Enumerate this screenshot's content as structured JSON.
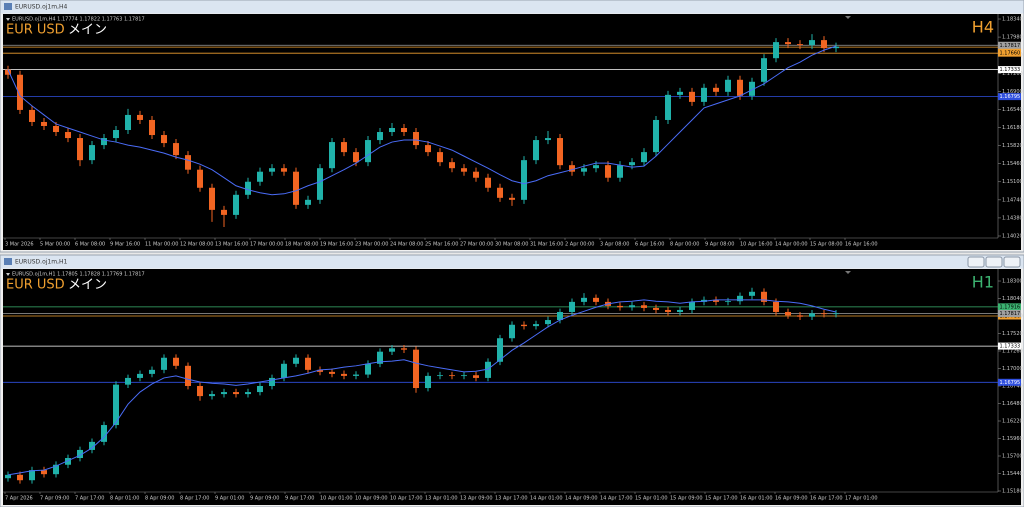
{
  "chart_data": [
    {
      "type": "candlestick",
      "window_title": "EURUSD.oj1m,H4",
      "header": "EURUSD.oj1m,H4  1.17774 1.17822 1.17763 1.17817",
      "symbol_label": "EUR USD",
      "name_label": "メイン",
      "timeframe": "H4",
      "timeframe_color": "#f0a030",
      "up_color": "#20b2aa",
      "down_color": "#f26522",
      "open": [
        1.1733,
        1.1723,
        1.1653,
        1.1629,
        1.1621,
        1.1609,
        1.1597,
        1.1553,
        1.1583,
        1.1597,
        1.1613,
        1.1643,
        1.1633,
        1.1603,
        1.1587,
        1.1563,
        1.1534,
        1.1498,
        1.1454,
        1.1444,
        1.1484,
        1.151,
        1.153,
        1.1537,
        1.153,
        1.1464,
        1.1474,
        1.1537,
        1.1589,
        1.1569,
        1.1549,
        1.1593,
        1.1609,
        1.1617,
        1.1609,
        1.1583,
        1.1569,
        1.1549,
        1.1537,
        1.153,
        1.1518,
        1.1498,
        1.1478,
        1.1474,
        1.1553,
        1.1593,
        1.1597,
        1.1543,
        1.153,
        1.1537,
        1.1543,
        1.1518,
        1.1543,
        1.1549,
        1.1569,
        1.1633,
        1.1683,
        1.1689,
        1.1669,
        1.1697,
        1.1689,
        1.1713,
        1.1681,
        1.1709,
        1.1756,
        1.1788,
        1.1784,
        1.1782,
        1.1792,
        1.1776
      ],
      "high": [
        1.1741,
        1.1731,
        1.1661,
        1.1637,
        1.1629,
        1.1617,
        1.1605,
        1.1591,
        1.1605,
        1.1621,
        1.1655,
        1.1651,
        1.1641,
        1.1611,
        1.1595,
        1.1571,
        1.1542,
        1.1506,
        1.1462,
        1.1492,
        1.1518,
        1.1538,
        1.1545,
        1.1545,
        1.1538,
        1.1482,
        1.1545,
        1.1597,
        1.1597,
        1.1577,
        1.1601,
        1.1617,
        1.1627,
        1.1625,
        1.1617,
        1.1591,
        1.1577,
        1.1557,
        1.1545,
        1.1538,
        1.1526,
        1.1506,
        1.1486,
        1.1561,
        1.1601,
        1.1611,
        1.1605,
        1.1551,
        1.1545,
        1.1551,
        1.1551,
        1.1551,
        1.1557,
        1.1577,
        1.1641,
        1.1691,
        1.1697,
        1.1697,
        1.1705,
        1.1705,
        1.1721,
        1.1721,
        1.1717,
        1.1764,
        1.1796,
        1.1796,
        1.1792,
        1.1804,
        1.18,
        1.1787
      ],
      "low": [
        1.1715,
        1.1645,
        1.1621,
        1.1613,
        1.1601,
        1.1589,
        1.1541,
        1.1545,
        1.1575,
        1.1589,
        1.1605,
        1.1625,
        1.1595,
        1.1579,
        1.1555,
        1.1526,
        1.149,
        1.143,
        1.142,
        1.1436,
        1.1476,
        1.1502,
        1.1522,
        1.1522,
        1.1456,
        1.1456,
        1.1466,
        1.1529,
        1.1561,
        1.1541,
        1.1541,
        1.1585,
        1.1601,
        1.1601,
        1.1575,
        1.1561,
        1.1541,
        1.1529,
        1.1522,
        1.151,
        1.149,
        1.147,
        1.1462,
        1.1466,
        1.1545,
        1.1585,
        1.1535,
        1.1522,
        1.1522,
        1.1529,
        1.151,
        1.151,
        1.1535,
        1.1541,
        1.1561,
        1.1625,
        1.1675,
        1.1661,
        1.1661,
        1.1681,
        1.1681,
        1.1673,
        1.1673,
        1.1701,
        1.1748,
        1.1776,
        1.1774,
        1.1774,
        1.1768,
        1.1768
      ],
      "close": [
        1.1723,
        1.1653,
        1.1629,
        1.1621,
        1.1609,
        1.1597,
        1.1553,
        1.1583,
        1.1597,
        1.1613,
        1.1643,
        1.1633,
        1.1603,
        1.1587,
        1.1563,
        1.1534,
        1.1498,
        1.1454,
        1.1444,
        1.1484,
        1.151,
        1.153,
        1.1537,
        1.153,
        1.1464,
        1.1474,
        1.1537,
        1.1589,
        1.1569,
        1.1549,
        1.1593,
        1.1609,
        1.1617,
        1.1609,
        1.1583,
        1.1569,
        1.1549,
        1.1537,
        1.153,
        1.1518,
        1.1498,
        1.1478,
        1.1474,
        1.1553,
        1.1593,
        1.1597,
        1.1543,
        1.153,
        1.1537,
        1.1543,
        1.1518,
        1.1543,
        1.1549,
        1.1569,
        1.1633,
        1.1683,
        1.1689,
        1.1669,
        1.1697,
        1.1689,
        1.1713,
        1.1681,
        1.1709,
        1.1756,
        1.1788,
        1.1784,
        1.1782,
        1.1792,
        1.1776,
        1.1779
      ],
      "ma": {
        "color": "#4a6cf7",
        "values": [
          1.1733,
          1.1681,
          1.1661,
          1.1643,
          1.1625,
          1.1617,
          1.1609,
          1.1601,
          1.1593,
          1.1589,
          1.1583,
          1.1579,
          1.1573,
          1.1567,
          1.1559,
          1.1553,
          1.1545,
          1.1534,
          1.1518,
          1.1502,
          1.1494,
          1.1488,
          1.1484,
          1.1486,
          1.1492,
          1.1502,
          1.151,
          1.1522,
          1.1534,
          1.1547,
          1.1563,
          1.1579,
          1.1589,
          1.1593,
          1.1593,
          1.1589,
          1.1581,
          1.1573,
          1.1561,
          1.1549,
          1.1537,
          1.1524,
          1.1512,
          1.1506,
          1.1512,
          1.1522,
          1.1528,
          1.1534,
          1.1541,
          1.1547,
          1.1547,
          1.1543,
          1.1539,
          1.1541,
          1.1561,
          1.1585,
          1.1609,
          1.1633,
          1.1657,
          1.1665,
          1.1673,
          1.1681,
          1.1693,
          1.1705,
          1.1721,
          1.1737,
          1.1748,
          1.1762,
          1.1772,
          1.178
        ]
      },
      "levels": [
        {
          "value": 1.1778,
          "label": "1.17780",
          "color": "#f0a030"
        },
        {
          "value": 1.1766,
          "label": "1.17660",
          "color": "#f0a030"
        },
        {
          "value": 1.17817,
          "color": "#a0a0a0"
        },
        {
          "value": 1.17333,
          "color": "#ffffff"
        },
        {
          "value": 1.16795,
          "color": "#3050e0"
        }
      ],
      "ylim": [
        1.1398,
        1.1838
      ],
      "yticks": [
        {
          "value": 1.1834,
          "label": "1.18340"
        },
        {
          "value": 1.1798,
          "label": "1.17980"
        },
        {
          "value": 1.1762,
          "label": "1.17620"
        },
        {
          "value": 1.1726,
          "label": "1.17260"
        },
        {
          "value": 1.169,
          "label": "1.16900"
        },
        {
          "value": 1.1654,
          "label": "1.16540"
        },
        {
          "value": 1.1618,
          "label": "1.16180"
        },
        {
          "value": 1.1582,
          "label": "1.15820"
        },
        {
          "value": 1.1546,
          "label": "1.15460"
        },
        {
          "value": 1.151,
          "label": "1.15100"
        },
        {
          "value": 1.1474,
          "label": "1.14740"
        },
        {
          "value": 1.1438,
          "label": "1.14380"
        },
        {
          "value": 1.1402,
          "label": "1.14020"
        }
      ],
      "time_labels": [
        "3 Mar 2026",
        "5 Mar 00:00",
        "6 Mar 08:00",
        "9 Mar 16:00",
        "11 Mar 00:00",
        "12 Mar 08:00",
        "13 Mar 16:00",
        "17 Mar 00:00",
        "18 Mar 08:00",
        "19 Mar 16:00",
        "23 Mar 00:00",
        "24 Mar 08:00",
        "25 Mar 16:00",
        "27 Mar 00:00",
        "30 Mar 08:00",
        "31 Mar 16:00",
        "2 Apr 00:00",
        "3 Apr 08:00",
        "6 Apr 16:00",
        "8 Apr 00:00",
        "9 Apr 08:00",
        "10 Apr 16:00",
        "14 Apr 00:00",
        "15 Apr 08:00",
        "16 Apr 16:00"
      ]
    },
    {
      "type": "candlestick",
      "window_title": "EURUSD.oj1m,H1",
      "header": "EURUSD.oj1m,H1  1.17805 1.17828 1.17769 1.17817",
      "symbol_label": "EUR USD",
      "name_label": "メイン",
      "timeframe": "H1",
      "timeframe_color": "#3cb371",
      "up_color": "#20b2aa",
      "down_color": "#f26522",
      "open": [
        1.1537,
        1.1542,
        1.1534,
        1.1549,
        1.1543,
        1.1557,
        1.1567,
        1.1579,
        1.1591,
        1.1616,
        1.1676,
        1.1686,
        1.1692,
        1.1698,
        1.1716,
        1.1704,
        1.1674,
        1.1659,
        1.1662,
        1.1665,
        1.1662,
        1.1665,
        1.1674,
        1.1686,
        1.1707,
        1.1716,
        1.1698,
        1.1695,
        1.1692,
        1.1689,
        1.1691,
        1.1707,
        1.1725,
        1.173,
        1.1728,
        1.1671,
        1.1689,
        1.169,
        1.1689,
        1.169,
        1.1686,
        1.171,
        1.1745,
        1.1765,
        1.1763,
        1.1766,
        1.1772,
        1.1784,
        1.1799,
        1.1805,
        1.1799,
        1.1793,
        1.1791,
        1.1794,
        1.179,
        1.1787,
        1.1784,
        1.1787,
        1.1799,
        1.1802,
        1.1799,
        1.18,
        1.1808,
        1.1814,
        1.1799,
        1.1784,
        1.1779,
        1.1777,
        1.1782,
        1.1781
      ],
      "high": [
        1.1547,
        1.1547,
        1.1554,
        1.1554,
        1.1562,
        1.1572,
        1.1584,
        1.1596,
        1.1621,
        1.1681,
        1.1691,
        1.1697,
        1.1703,
        1.1721,
        1.1721,
        1.1709,
        1.1679,
        1.1667,
        1.167,
        1.167,
        1.167,
        1.1679,
        1.1691,
        1.1712,
        1.1721,
        1.1721,
        1.1703,
        1.17,
        1.1697,
        1.1696,
        1.1712,
        1.173,
        1.1735,
        1.1735,
        1.1733,
        1.1694,
        1.1695,
        1.1695,
        1.1695,
        1.1695,
        1.1715,
        1.175,
        1.177,
        1.177,
        1.1771,
        1.1777,
        1.1789,
        1.1804,
        1.1812,
        1.181,
        1.1804,
        1.1798,
        1.1799,
        1.1799,
        1.1795,
        1.1792,
        1.1792,
        1.1804,
        1.1807,
        1.1807,
        1.1805,
        1.1813,
        1.182,
        1.1819,
        1.1804,
        1.1789,
        1.1784,
        1.1787,
        1.1787,
        1.1787
      ],
      "low": [
        1.1532,
        1.1529,
        1.1529,
        1.1538,
        1.1538,
        1.1552,
        1.1562,
        1.1574,
        1.1586,
        1.1611,
        1.1671,
        1.1681,
        1.1687,
        1.1693,
        1.1699,
        1.1669,
        1.1652,
        1.1654,
        1.1657,
        1.1657,
        1.1657,
        1.166,
        1.1669,
        1.1681,
        1.1702,
        1.1693,
        1.169,
        1.1687,
        1.1684,
        1.1684,
        1.1686,
        1.1702,
        1.172,
        1.1723,
        1.1664,
        1.1666,
        1.1684,
        1.1684,
        1.1684,
        1.1681,
        1.1681,
        1.1705,
        1.174,
        1.1758,
        1.1758,
        1.1761,
        1.1767,
        1.1779,
        1.1794,
        1.1794,
        1.1788,
        1.1786,
        1.1786,
        1.1785,
        1.1782,
        1.1779,
        1.1779,
        1.1782,
        1.1794,
        1.1794,
        1.1794,
        1.1795,
        1.1803,
        1.1794,
        1.1779,
        1.1774,
        1.1772,
        1.1772,
        1.1776,
        1.1776
      ],
      "close": [
        1.1542,
        1.1534,
        1.1549,
        1.1543,
        1.1557,
        1.1567,
        1.1579,
        1.1591,
        1.1616,
        1.1676,
        1.1686,
        1.1692,
        1.1698,
        1.1716,
        1.1704,
        1.1674,
        1.1659,
        1.1662,
        1.1665,
        1.1662,
        1.1665,
        1.1674,
        1.1686,
        1.1707,
        1.1716,
        1.1698,
        1.1695,
        1.1692,
        1.1689,
        1.1691,
        1.1707,
        1.1725,
        1.173,
        1.1728,
        1.1671,
        1.1689,
        1.169,
        1.1689,
        1.169,
        1.1686,
        1.171,
        1.1745,
        1.1765,
        1.1763,
        1.1766,
        1.1772,
        1.1784,
        1.1799,
        1.1805,
        1.1799,
        1.1793,
        1.1791,
        1.1794,
        1.179,
        1.1787,
        1.1784,
        1.1787,
        1.1799,
        1.1802,
        1.1799,
        1.18,
        1.1808,
        1.1814,
        1.1799,
        1.1784,
        1.1779,
        1.1777,
        1.1782,
        1.1781,
        1.1782
      ],
      "ma": {
        "color": "#4a6cf7",
        "values": [
          1.1542,
          1.1545,
          1.1548,
          1.1549,
          1.1555,
          1.1563,
          1.1571,
          1.1582,
          1.1598,
          1.162,
          1.1647,
          1.1665,
          1.1677,
          1.1686,
          1.1689,
          1.1684,
          1.168,
          1.1678,
          1.1677,
          1.1675,
          1.1677,
          1.168,
          1.1683,
          1.1686,
          1.1689,
          1.1693,
          1.1698,
          1.1699,
          1.1702,
          1.1704,
          1.1707,
          1.171,
          1.1711,
          1.1713,
          1.1708,
          1.1704,
          1.1701,
          1.1698,
          1.1695,
          1.1696,
          1.1699,
          1.1713,
          1.1727,
          1.1738,
          1.175,
          1.1762,
          1.1772,
          1.1779,
          1.1785,
          1.1791,
          1.1796,
          1.1799,
          1.18,
          1.1802,
          1.18,
          1.1799,
          1.1797,
          1.1799,
          1.18,
          1.1802,
          1.1802,
          1.1802,
          1.1802,
          1.1802,
          1.18,
          1.1799,
          1.1797,
          1.1793,
          1.1788,
          1.1784
        ]
      },
      "levels": [
        {
          "value": 1.17916,
          "color": "#3cb371"
        },
        {
          "value": 1.1778,
          "label": "1.17780",
          "color": "#f0a030"
        },
        {
          "value": 1.17817,
          "color": "#a0a0a0"
        },
        {
          "value": 1.17333,
          "color": "#ffffff"
        },
        {
          "value": 1.16795,
          "color": "#3050e0"
        }
      ],
      "ylim": [
        1.15165,
        1.18434
      ],
      "yticks": [
        {
          "value": 1.183,
          "label": "1.18300"
        },
        {
          "value": 1.1804,
          "label": "1.18040"
        },
        {
          "value": 1.1778,
          "label": "1.17780"
        },
        {
          "value": 1.1752,
          "label": "1.17520"
        },
        {
          "value": 1.1726,
          "label": "1.17260"
        },
        {
          "value": 1.17,
          "label": "1.17000"
        },
        {
          "value": 1.1674,
          "label": "1.16740"
        },
        {
          "value": 1.1648,
          "label": "1.16480"
        },
        {
          "value": 1.1622,
          "label": "1.16220"
        },
        {
          "value": 1.1596,
          "label": "1.15960"
        },
        {
          "value": 1.157,
          "label": "1.15700"
        },
        {
          "value": 1.1544,
          "label": "1.15440"
        },
        {
          "value": 1.1518,
          "label": "1.15180"
        }
      ],
      "time_labels": [
        "7 Apr 2026",
        "7 Apr 09:00",
        "7 Apr 17:00",
        "8 Apr 01:00",
        "8 Apr 09:00",
        "8 Apr 17:00",
        "9 Apr 01:00",
        "9 Apr 09:00",
        "9 Apr 17:00",
        "10 Apr 01:00",
        "10 Apr 09:00",
        "10 Apr 17:00",
        "13 Apr 01:00",
        "13 Apr 09:00",
        "13 Apr 17:00",
        "14 Apr 01:00",
        "14 Apr 09:00",
        "14 Apr 17:00",
        "15 Apr 01:00",
        "15 Apr 09:00",
        "15 Apr 17:00",
        "16 Apr 01:00",
        "16 Apr 09:00",
        "16 Apr 17:00",
        "17 Apr 01:00"
      ]
    }
  ]
}
